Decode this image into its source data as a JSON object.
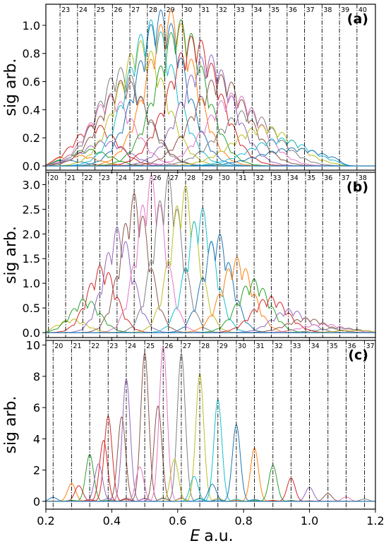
{
  "chart_data": [
    {
      "type": "line",
      "panel_label": "(a)",
      "ylabel": "sig arb.",
      "xlim": [
        0.2,
        1.2
      ],
      "ylim": [
        -0.03,
        1.15
      ],
      "yticks": [
        0.0,
        0.2,
        0.4,
        0.6,
        0.8,
        1.0
      ],
      "ytick_labels": [
        "0.0",
        "0.2",
        "0.4",
        "0.6",
        "0.8",
        "1.0"
      ],
      "show_x_tick_labels": false,
      "harmonic_lines": {
        "labels": [
          "23",
          "24",
          "25",
          "26",
          "27",
          "28",
          "29",
          "30",
          "31",
          "32",
          "33",
          "34",
          "35",
          "36",
          "37",
          "38",
          "39",
          "40"
        ],
        "x": [
          0.243,
          0.296,
          0.349,
          0.402,
          0.455,
          0.508,
          0.561,
          0.614,
          0.667,
          0.72,
          0.773,
          0.826,
          0.879,
          0.932,
          0.985,
          1.038,
          1.091,
          1.144
        ]
      },
      "lobe_width": 0.022,
      "series_centers": [
        0.244,
        0.275,
        0.305,
        0.336,
        0.366,
        0.397,
        0.427,
        0.458,
        0.488,
        0.519,
        0.549,
        0.58,
        0.61,
        0.641,
        0.671,
        0.702,
        0.732,
        0.763,
        0.794,
        0.824,
        0.855,
        0.885,
        0.916,
        0.946,
        0.977,
        1.007,
        1.038,
        1.068
      ],
      "envelopes": [
        {
          "color": "#1f77b4",
          "peak": 0.04,
          "mu": 0.26,
          "width": 0.055
        },
        {
          "color": "#ff7f0e",
          "peak": 0.08,
          "mu": 0.29,
          "width": 0.06
        },
        {
          "color": "#2ca02c",
          "peak": 0.12,
          "mu": 0.33,
          "width": 0.06
        },
        {
          "color": "#d62728",
          "peak": 0.3,
          "mu": 0.35,
          "width": 0.06
        },
        {
          "color": "#9467bd",
          "peak": 0.18,
          "mu": 0.38,
          "width": 0.065
        },
        {
          "color": "#e377c2",
          "peak": 0.5,
          "mu": 0.4,
          "width": 0.065
        },
        {
          "color": "#8c564b",
          "peak": 0.62,
          "mu": 0.44,
          "width": 0.07
        },
        {
          "color": "#7f7f7f",
          "peak": 0.7,
          "mu": 0.43,
          "width": 0.07
        },
        {
          "color": "#bcbd22",
          "peak": 0.89,
          "mu": 0.49,
          "width": 0.07
        },
        {
          "color": "#17becf",
          "peak": 1.04,
          "mu": 0.52,
          "width": 0.07
        },
        {
          "color": "#1f77b4",
          "peak": 1.11,
          "mu": 0.55,
          "width": 0.07
        },
        {
          "color": "#ff7f0e",
          "peak": 1.11,
          "mu": 0.58,
          "width": 0.07
        },
        {
          "color": "#2ca02c",
          "peak": 1.04,
          "mu": 0.61,
          "width": 0.07
        },
        {
          "color": "#d62728",
          "peak": 0.93,
          "mu": 0.65,
          "width": 0.075
        },
        {
          "color": "#9467bd",
          "peak": 0.8,
          "mu": 0.69,
          "width": 0.075
        },
        {
          "color": "#8c564b",
          "peak": 0.65,
          "mu": 0.73,
          "width": 0.08
        },
        {
          "color": "#e377c2",
          "peak": 0.52,
          "mu": 0.77,
          "width": 0.08
        },
        {
          "color": "#7f7f7f",
          "peak": 0.4,
          "mu": 0.81,
          "width": 0.085
        },
        {
          "color": "#bcbd22",
          "peak": 0.29,
          "mu": 0.86,
          "width": 0.09
        },
        {
          "color": "#17becf",
          "peak": 0.2,
          "mu": 0.91,
          "width": 0.09
        },
        {
          "color": "#1f77b4",
          "peak": 0.13,
          "mu": 0.95,
          "width": 0.1
        }
      ]
    },
    {
      "type": "line",
      "panel_label": "(b)",
      "ylabel": "sig arb.",
      "xlim": [
        0.2,
        1.2
      ],
      "ylim": [
        -0.1,
        3.25
      ],
      "yticks": [
        0.0,
        0.5,
        1.0,
        1.5,
        2.0,
        2.5,
        3.0
      ],
      "ytick_labels": [
        "0.0",
        "0.5",
        "1.0",
        "1.5",
        "2.0",
        "2.5",
        "3.0"
      ],
      "show_x_tick_labels": false,
      "harmonic_lines": {
        "labels": [
          "20",
          "21",
          "22",
          "23",
          "24",
          "25",
          "26",
          "27",
          "28",
          "29",
          "30",
          "31",
          "32",
          "33",
          "34",
          "35",
          "36",
          "37",
          "38"
        ],
        "x": [
          0.208,
          0.26,
          0.312,
          0.364,
          0.416,
          0.468,
          0.52,
          0.572,
          0.624,
          0.676,
          0.728,
          0.78,
          0.832,
          0.884,
          0.936,
          0.988,
          1.04,
          1.092,
          1.144
        ]
      },
      "lobe_width": 0.017,
      "series_centers": [
        0.235,
        0.26,
        0.286,
        0.312,
        0.338,
        0.364,
        0.39,
        0.416,
        0.442,
        0.468,
        0.494,
        0.52,
        0.546,
        0.572,
        0.598,
        0.624,
        0.65,
        0.676,
        0.702,
        0.728,
        0.754,
        0.78,
        0.806,
        0.832,
        0.858,
        0.884,
        0.91,
        0.936,
        0.962,
        0.988,
        1.014,
        1.04,
        1.066,
        1.092,
        1.118,
        1.144,
        1.17
      ],
      "envelopes": [
        {
          "color": "#bcbd22",
          "peak": 0.28,
          "mu": 0.28,
          "width": 0.04
        },
        {
          "color": "#2ca02c",
          "peak": 0.7,
          "mu": 0.32,
          "width": 0.04
        },
        {
          "color": "#d62728",
          "peak": 1.38,
          "mu": 0.37,
          "width": 0.04
        },
        {
          "color": "#9467bd",
          "peak": 2.15,
          "mu": 0.42,
          "width": 0.04
        },
        {
          "color": "#8c564b",
          "peak": 2.83,
          "mu": 0.47,
          "width": 0.04
        },
        {
          "color": "#e377c2",
          "peak": 3.2,
          "mu": 0.52,
          "width": 0.04
        },
        {
          "color": "#7f7f7f",
          "peak": 3.2,
          "mu": 0.57,
          "width": 0.04
        },
        {
          "color": "#bcbd22",
          "peak": 2.99,
          "mu": 0.62,
          "width": 0.04
        },
        {
          "color": "#17becf",
          "peak": 2.55,
          "mu": 0.67,
          "width": 0.04
        },
        {
          "color": "#1f77b4",
          "peak": 2.04,
          "mu": 0.72,
          "width": 0.04
        },
        {
          "color": "#ff7f0e",
          "peak": 1.53,
          "mu": 0.78,
          "width": 0.045
        },
        {
          "color": "#2ca02c",
          "peak": 1.09,
          "mu": 0.83,
          "width": 0.045
        },
        {
          "color": "#d62728",
          "peak": 0.74,
          "mu": 0.88,
          "width": 0.05
        },
        {
          "color": "#9467bd",
          "peak": 0.48,
          "mu": 0.94,
          "width": 0.05
        },
        {
          "color": "#8c564b",
          "peak": 0.3,
          "mu": 0.99,
          "width": 0.055
        },
        {
          "color": "#e377c2",
          "peak": 0.18,
          "mu": 1.04,
          "width": 0.06
        },
        {
          "color": "#7f7f7f",
          "peak": 0.1,
          "mu": 1.09,
          "width": 0.06
        },
        {
          "color": "#bcbd22",
          "peak": 0.05,
          "mu": 1.14,
          "width": 0.06
        }
      ]
    },
    {
      "type": "line",
      "panel_label": "(c)",
      "ylabel": "sig arb.",
      "xlabel": "a.u.",
      "xlabel_var": "E",
      "xlim": [
        0.2,
        1.2
      ],
      "ylim": [
        -0.5,
        10.3
      ],
      "yticks": [
        0,
        2,
        4,
        6,
        8,
        10
      ],
      "ytick_labels": [
        "0",
        "2",
        "4",
        "6",
        "8",
        "10"
      ],
      "xticks": [
        0.2,
        0.4,
        0.6,
        0.8,
        1.0,
        1.2
      ],
      "xtick_labels": [
        "0.2",
        "0.4",
        "0.6",
        "0.8",
        "1.0",
        "1.2"
      ],
      "show_x_tick_labels": true,
      "harmonic_lines": {
        "labels": [
          "20",
          "21",
          "22",
          "23",
          "24",
          "25",
          "26",
          "27",
          "28",
          "29",
          "30",
          "31",
          "32",
          "33",
          "34",
          "35",
          "36",
          "37"
        ],
        "x": [
          0.222,
          0.278,
          0.333,
          0.389,
          0.444,
          0.5,
          0.556,
          0.611,
          0.667,
          0.722,
          0.778,
          0.833,
          0.889,
          0.944,
          1.0,
          1.056,
          1.111,
          1.167
        ]
      },
      "lobe_width": 0.012,
      "series_centers": [
        0.222,
        0.278,
        0.333,
        0.389,
        0.444,
        0.5,
        0.556,
        0.611,
        0.667,
        0.722,
        0.778,
        0.833,
        0.889,
        0.944,
        1.0,
        1.056,
        1.111,
        1.167
      ],
      "envelopes": [
        {
          "color": "#1f77b4",
          "peak": 0.25,
          "mu": 0.22,
          "width": 0.02
        },
        {
          "color": "#ff7f0e",
          "peak": 1.15,
          "mu": 0.278,
          "width": 0.02
        },
        {
          "color": "#2ca02c",
          "peak": 3.0,
          "mu": 0.333,
          "width": 0.02
        },
        {
          "color": "#d62728",
          "peak": 5.45,
          "mu": 0.389,
          "width": 0.02
        },
        {
          "color": "#9467bd",
          "peak": 7.85,
          "mu": 0.444,
          "width": 0.02
        },
        {
          "color": "#8c564b",
          "peak": 9.5,
          "mu": 0.5,
          "width": 0.02
        },
        {
          "color": "#e377c2",
          "peak": 9.95,
          "mu": 0.556,
          "width": 0.02
        },
        {
          "color": "#7f7f7f",
          "peak": 9.45,
          "mu": 0.611,
          "width": 0.02
        },
        {
          "color": "#bcbd22",
          "peak": 8.15,
          "mu": 0.667,
          "width": 0.02
        },
        {
          "color": "#17becf",
          "peak": 6.5,
          "mu": 0.722,
          "width": 0.02
        },
        {
          "color": "#1f77b4",
          "peak": 4.9,
          "mu": 0.778,
          "width": 0.02
        },
        {
          "color": "#ff7f0e",
          "peak": 3.4,
          "mu": 0.833,
          "width": 0.02
        },
        {
          "color": "#2ca02c",
          "peak": 2.3,
          "mu": 0.889,
          "width": 0.02
        },
        {
          "color": "#d62728",
          "peak": 1.5,
          "mu": 0.944,
          "width": 0.02
        },
        {
          "color": "#9467bd",
          "peak": 0.9,
          "mu": 1.0,
          "width": 0.02
        },
        {
          "color": "#8c564b",
          "peak": 0.5,
          "mu": 1.056,
          "width": 0.02
        },
        {
          "color": "#e377c2",
          "peak": 0.28,
          "mu": 1.111,
          "width": 0.02
        },
        {
          "color": "#7f7f7f",
          "peak": 0.15,
          "mu": 1.167,
          "width": 0.02
        }
      ],
      "secondary_peaks": [
        {
          "color": "#d62728",
          "x": 0.3,
          "peak": 1.0
        },
        {
          "color": "#9467bd",
          "x": 0.36,
          "peak": 2.4
        },
        {
          "color": "#d62728",
          "x": 0.375,
          "peak": 3.9
        },
        {
          "color": "#8c564b",
          "x": 0.43,
          "peak": 5.4
        },
        {
          "color": "#e377c2",
          "x": 0.485,
          "peak": 2.2
        },
        {
          "color": "#8c564b",
          "x": 0.54,
          "peak": 6.1
        },
        {
          "color": "#bcbd22",
          "x": 0.59,
          "peak": 2.7
        },
        {
          "color": "#17becf",
          "x": 0.65,
          "peak": 1.6
        },
        {
          "color": "#1f77b4",
          "x": 0.705,
          "peak": 1.1
        }
      ]
    }
  ]
}
